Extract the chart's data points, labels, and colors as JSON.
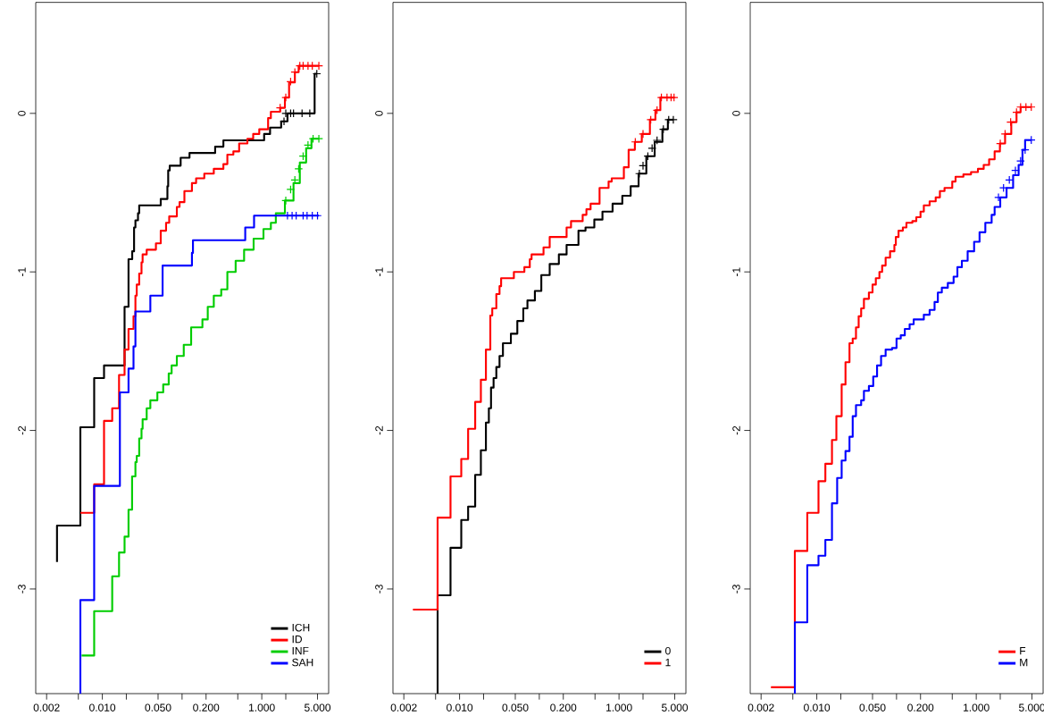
{
  "chart_data": [
    {
      "type": "step",
      "log": "x",
      "legend": "bottom right",
      "xlim": [
        0.00146,
        6.9
      ],
      "ylim": [
        -3.66,
        0.7
      ],
      "xticks": [
        {
          "value": 0.002,
          "label": "0.002"
        },
        {
          "value": 0.005,
          "label": null
        },
        {
          "value": 0.01,
          "label": "0.010"
        },
        {
          "value": 0.02,
          "label": null
        },
        {
          "value": 0.05,
          "label": "0.050"
        },
        {
          "value": 0.1,
          "label": null
        },
        {
          "value": 0.2,
          "label": "0.200"
        },
        {
          "value": 0.5,
          "label": null
        },
        {
          "value": 1,
          "label": "1.000"
        },
        {
          "value": 2,
          "label": null
        },
        {
          "value": 5,
          "label": "5.000"
        }
      ],
      "yticks": [
        -3,
        -2,
        -1,
        0
      ],
      "series": [
        {
          "name": "ICH",
          "color": "#000000",
          "x": [
            0.0027,
            0.0027,
            0.0053,
            0.0079,
            0.0105,
            0.019,
            0.0213,
            0.0237,
            0.025,
            0.026,
            0.028,
            0.029,
            0.054,
            0.0655,
            0.067,
            0.07,
            0.096,
            0.124,
            0.26,
            0.33,
            1.07,
            1.27,
            1.75,
            2.1,
            4.6,
            4.9
          ],
          "values": [
            -2.83,
            -2.6,
            -1.98,
            -1.67,
            -1.59,
            -1.22,
            -0.92,
            -0.87,
            -0.72,
            -0.675,
            -0.63,
            -0.58,
            -0.54,
            -0.46,
            -0.36,
            -0.33,
            -0.28,
            -0.25,
            -0.21,
            -0.17,
            -0.13,
            -0.09,
            -0.05,
            0.0,
            0.25,
            0.25
          ]
        },
        {
          "name": "ID",
          "color": "#ff0000",
          "x": [
            0.0053,
            0.0079,
            0.0105,
            0.0133,
            0.0162,
            0.019,
            0.0213,
            0.0246,
            0.026,
            0.027,
            0.029,
            0.031,
            0.032,
            0.036,
            0.047,
            0.054,
            0.063,
            0.069,
            0.086,
            0.093,
            0.107,
            0.133,
            0.15,
            0.19,
            0.25,
            0.33,
            0.37,
            0.44,
            0.52,
            0.66,
            0.78,
            0.93,
            1.2,
            1.3,
            1.7,
            1.95,
            2.2,
            2.6,
            2.9,
            5.2
          ],
          "values": [
            -2.52,
            -2.34,
            -1.94,
            -1.86,
            -1.65,
            -1.49,
            -1.36,
            -1.28,
            -1.15,
            -1.08,
            -1.01,
            -0.94,
            -0.89,
            -0.86,
            -0.82,
            -0.74,
            -0.69,
            -0.65,
            -0.59,
            -0.56,
            -0.49,
            -0.44,
            -0.41,
            -0.38,
            -0.35,
            -0.32,
            -0.26,
            -0.24,
            -0.19,
            -0.16,
            -0.13,
            -0.1,
            -0.03,
            0.01,
            0.035,
            0.1,
            0.195,
            0.26,
            0.3,
            0.3
          ]
        },
        {
          "name": "INF",
          "color": "#00cd00",
          "x": [
            0.0055,
            0.0079,
            0.0133,
            0.0162,
            0.019,
            0.0213,
            0.0236,
            0.026,
            0.027,
            0.029,
            0.031,
            0.032,
            0.036,
            0.04,
            0.049,
            0.058,
            0.068,
            0.074,
            0.086,
            0.105,
            0.13,
            0.18,
            0.21,
            0.25,
            0.31,
            0.37,
            0.47,
            0.6,
            0.79,
            1.05,
            1.3,
            1.5,
            1.95,
            2.5,
            3.0,
            3.6,
            4.2,
            5.2
          ],
          "values": [
            -3.42,
            -3.14,
            -2.92,
            -2.77,
            -2.67,
            -2.5,
            -2.29,
            -2.2,
            -2.16,
            -2.05,
            -1.99,
            -1.93,
            -1.86,
            -1.81,
            -1.76,
            -1.71,
            -1.64,
            -1.59,
            -1.53,
            -1.46,
            -1.35,
            -1.3,
            -1.22,
            -1.15,
            -1.11,
            -1.0,
            -0.93,
            -0.86,
            -0.79,
            -0.73,
            -0.69,
            -0.63,
            -0.55,
            -0.44,
            -0.31,
            -0.22,
            -0.16,
            -0.16
          ]
        },
        {
          "name": "SAH",
          "color": "#0000ff",
          "x": [
            0.0053,
            0.0053,
            0.0079,
            0.0166,
            0.0213,
            0.0246,
            0.026,
            0.04,
            0.057,
            0.133,
            0.137,
            0.62,
            0.8,
            5.2
          ],
          "values": [
            -3.66,
            -3.07,
            -2.35,
            -1.76,
            -1.61,
            -1.47,
            -1.25,
            -1.15,
            -0.96,
            -0.88,
            -0.8,
            -0.72,
            -0.645,
            -0.645
          ]
        },
        {
          "type": "scatter",
          "marker": "cross",
          "color": "#000000",
          "x": [
            1.9,
            2.0,
            2.3,
            2.5,
            3.2,
            4.0,
            4.9
          ],
          "values": [
            -0.05,
            0.0,
            0.0,
            0.0,
            0.0,
            0.0,
            0.25
          ]
        },
        {
          "type": "scatter",
          "marker": "cross",
          "color": "#ff0000",
          "x": [
            1.7,
            2.0,
            2.3,
            2.6,
            3.0,
            3.3,
            3.8,
            4.3,
            5.2
          ],
          "values": [
            0.035,
            0.1,
            0.2,
            0.26,
            0.3,
            0.3,
            0.3,
            0.3,
            0.3
          ]
        },
        {
          "type": "scatter",
          "marker": "cross",
          "color": "#00cd00",
          "x": [
            2.0,
            2.3,
            2.6,
            2.9,
            3.3,
            3.8,
            4.4,
            5.2
          ],
          "values": [
            -0.55,
            -0.48,
            -0.42,
            -0.35,
            -0.27,
            -0.2,
            -0.16,
            -0.16
          ]
        },
        {
          "type": "scatter",
          "marker": "cross",
          "color": "#0000ff",
          "x": [
            2.1,
            2.4,
            2.7,
            3.3,
            3.7,
            4.3,
            5.0
          ],
          "values": [
            -0.645,
            -0.645,
            -0.645,
            -0.645,
            -0.645,
            -0.645,
            -0.645
          ]
        }
      ]
    },
    {
      "type": "step",
      "log": "x",
      "legend": "bottom right",
      "xlim": [
        0.00146,
        6.9
      ],
      "ylim": [
        -3.66,
        0.7
      ],
      "xticks": [
        {
          "value": 0.002,
          "label": "0.002"
        },
        {
          "value": 0.005,
          "label": null
        },
        {
          "value": 0.01,
          "label": "0.010"
        },
        {
          "value": 0.02,
          "label": null
        },
        {
          "value": 0.05,
          "label": "0.050"
        },
        {
          "value": 0.1,
          "label": null
        },
        {
          "value": 0.2,
          "label": "0.200"
        },
        {
          "value": 0.5,
          "label": null
        },
        {
          "value": 1,
          "label": "1.000"
        },
        {
          "value": 2,
          "label": null
        },
        {
          "value": 5,
          "label": "5.000"
        }
      ],
      "yticks": [
        -3,
        -2,
        -1,
        0
      ],
      "series": [
        {
          "name": "0",
          "color": "#000000",
          "x": [
            0.0053,
            0.0053,
            0.0077,
            0.0105,
            0.0128,
            0.0157,
            0.0185,
            0.0214,
            0.0233,
            0.0248,
            0.0267,
            0.0289,
            0.0317,
            0.035,
            0.044,
            0.053,
            0.063,
            0.071,
            0.088,
            0.106,
            0.135,
            0.176,
            0.22,
            0.31,
            0.38,
            0.49,
            0.62,
            0.83,
            1.1,
            1.4,
            1.76,
            2.2,
            2.8,
            3.5,
            4.1,
            4.8
          ],
          "values": [
            -3.66,
            -3.04,
            -2.74,
            -2.565,
            -2.48,
            -2.28,
            -2.125,
            -1.95,
            -1.86,
            -1.73,
            -1.67,
            -1.6,
            -1.53,
            -1.45,
            -1.39,
            -1.31,
            -1.23,
            -1.18,
            -1.12,
            -1.02,
            -0.95,
            -0.89,
            -0.83,
            -0.74,
            -0.72,
            -0.67,
            -0.62,
            -0.57,
            -0.52,
            -0.46,
            -0.38,
            -0.27,
            -0.18,
            -0.1,
            -0.04,
            -0.04
          ]
        },
        {
          "name": "1",
          "color": "#ff0000",
          "x": [
            0.0026,
            0.0053,
            0.0077,
            0.0105,
            0.0128,
            0.0157,
            0.0185,
            0.0214,
            0.0243,
            0.0257,
            0.0289,
            0.0317,
            0.0332,
            0.048,
            0.065,
            0.076,
            0.08,
            0.113,
            0.135,
            0.22,
            0.25,
            0.35,
            0.39,
            0.44,
            0.57,
            0.74,
            0.81,
            1.15,
            1.32,
            1.58,
            1.93,
            2.44,
            2.86,
            3.3,
            4.9
          ],
          "values": [
            -3.13,
            -2.55,
            -2.29,
            -2.18,
            -1.99,
            -1.82,
            -1.68,
            -1.49,
            -1.275,
            -1.23,
            -1.14,
            -1.09,
            -1.04,
            -1.0,
            -0.97,
            -0.92,
            -0.89,
            -0.845,
            -0.78,
            -0.72,
            -0.68,
            -0.64,
            -0.605,
            -0.57,
            -0.47,
            -0.43,
            -0.41,
            -0.34,
            -0.23,
            -0.18,
            -0.13,
            -0.04,
            0.02,
            0.1,
            0.1
          ]
        },
        {
          "type": "scatter",
          "marker": "cross",
          "color": "#000000",
          "x": [
            1.8,
            2.0,
            2.3,
            2.6,
            3.0,
            3.6,
            4.2,
            4.8
          ],
          "values": [
            -0.38,
            -0.33,
            -0.27,
            -0.22,
            -0.17,
            -0.1,
            -0.04,
            -0.04
          ]
        },
        {
          "type": "scatter",
          "marker": "cross",
          "color": "#ff0000",
          "x": [
            1.6,
            2.0,
            2.5,
            3.0,
            3.4,
            4.0,
            4.5,
            4.9
          ],
          "values": [
            -0.18,
            -0.13,
            -0.04,
            0.02,
            0.1,
            0.1,
            0.1,
            0.1
          ]
        }
      ]
    },
    {
      "type": "step",
      "log": "x",
      "legend": "bottom right",
      "xlim": [
        0.00146,
        6.9
      ],
      "ylim": [
        -3.66,
        0.7
      ],
      "xticks": [
        {
          "value": 0.002,
          "label": "0.002"
        },
        {
          "value": 0.005,
          "label": null
        },
        {
          "value": 0.01,
          "label": "0.010"
        },
        {
          "value": 0.02,
          "label": null
        },
        {
          "value": 0.05,
          "label": "0.050"
        },
        {
          "value": 0.1,
          "label": null
        },
        {
          "value": 0.2,
          "label": "0.200"
        },
        {
          "value": 0.5,
          "label": null
        },
        {
          "value": 1,
          "label": "1.000"
        },
        {
          "value": 2,
          "label": null
        },
        {
          "value": 5,
          "label": "5.000"
        }
      ],
      "yticks": [
        -3,
        -2,
        -1,
        0
      ],
      "series": [
        {
          "name": "F",
          "color": "#ff0000",
          "x": [
            0.00266,
            0.0053,
            0.0076,
            0.0105,
            0.0128,
            0.0155,
            0.0176,
            0.0205,
            0.0229,
            0.0257,
            0.0282,
            0.031,
            0.0335,
            0.036,
            0.039,
            0.045,
            0.05,
            0.055,
            0.061,
            0.066,
            0.073,
            0.083,
            0.094,
            0.098,
            0.106,
            0.12,
            0.133,
            0.158,
            0.177,
            0.2,
            0.22,
            0.26,
            0.31,
            0.35,
            0.4,
            0.5,
            0.55,
            0.69,
            0.86,
            1.05,
            1.24,
            1.45,
            1.7,
            1.98,
            2.3,
            2.75,
            3.2,
            3.6,
            4.9
          ],
          "values": [
            -3.62,
            -2.76,
            -2.52,
            -2.32,
            -2.21,
            -2.06,
            -1.91,
            -1.71,
            -1.57,
            -1.45,
            -1.42,
            -1.35,
            -1.28,
            -1.23,
            -1.17,
            -1.13,
            -1.08,
            -1.04,
            -1.0,
            -0.96,
            -0.91,
            -0.87,
            -0.83,
            -0.78,
            -0.74,
            -0.72,
            -0.69,
            -0.68,
            -0.655,
            -0.62,
            -0.58,
            -0.555,
            -0.53,
            -0.49,
            -0.47,
            -0.43,
            -0.4,
            -0.385,
            -0.37,
            -0.35,
            -0.325,
            -0.29,
            -0.24,
            -0.19,
            -0.13,
            -0.055,
            0.007,
            0.04,
            0.04
          ]
        },
        {
          "name": "M",
          "color": "#0000ff",
          "x": [
            0.0053,
            0.0053,
            0.0076,
            0.0105,
            0.0128,
            0.0155,
            0.018,
            0.0205,
            0.0229,
            0.0257,
            0.0282,
            0.031,
            0.036,
            0.039,
            0.045,
            0.051,
            0.057,
            0.064,
            0.073,
            0.088,
            0.1,
            0.113,
            0.127,
            0.146,
            0.164,
            0.22,
            0.26,
            0.3,
            0.33,
            0.37,
            0.44,
            0.52,
            0.58,
            0.66,
            0.78,
            0.94,
            1.1,
            1.3,
            1.56,
            1.7,
            2.0,
            2.4,
            2.9,
            3.4,
            3.8,
            4.1,
            4.9
          ],
          "values": [
            -3.66,
            -3.21,
            -2.85,
            -2.79,
            -2.69,
            -2.46,
            -2.3,
            -2.19,
            -2.13,
            -2.04,
            -1.91,
            -1.84,
            -1.81,
            -1.75,
            -1.72,
            -1.66,
            -1.59,
            -1.53,
            -1.49,
            -1.48,
            -1.42,
            -1.4,
            -1.36,
            -1.33,
            -1.3,
            -1.27,
            -1.24,
            -1.19,
            -1.13,
            -1.1,
            -1.07,
            -1.03,
            -0.97,
            -0.93,
            -0.87,
            -0.81,
            -0.75,
            -0.69,
            -0.64,
            -0.59,
            -0.53,
            -0.47,
            -0.39,
            -0.325,
            -0.23,
            -0.168,
            -0.168
          ]
        },
        {
          "type": "scatter",
          "marker": "cross",
          "color": "#ff0000",
          "x": [
            2.0,
            2.3,
            2.7,
            3.2,
            3.6,
            4.2,
            4.9
          ],
          "values": [
            -0.19,
            -0.13,
            -0.055,
            0.007,
            0.04,
            0.04,
            0.04
          ]
        },
        {
          "type": "scatter",
          "marker": "cross",
          "color": "#0000ff",
          "x": [
            1.9,
            2.2,
            2.6,
            3.1,
            3.6,
            4.1,
            4.9
          ],
          "values": [
            -0.53,
            -0.47,
            -0.42,
            -0.36,
            -0.3,
            -0.23,
            -0.168
          ]
        }
      ]
    }
  ]
}
